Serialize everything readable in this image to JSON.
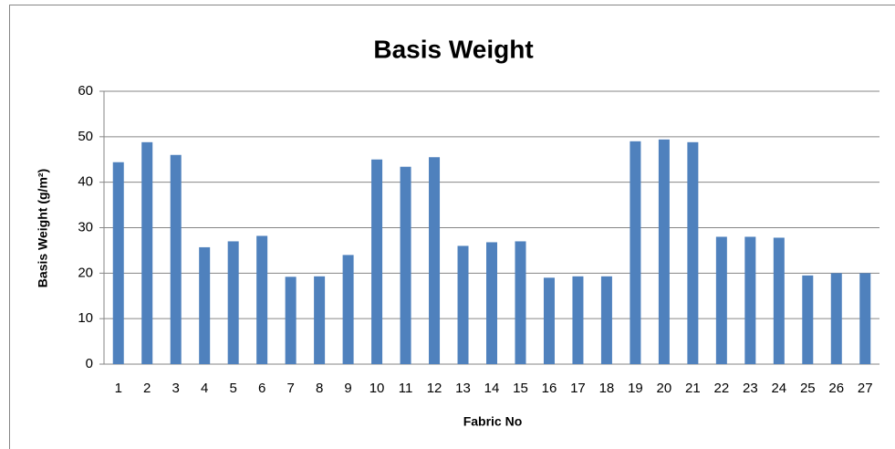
{
  "chart_data": {
    "type": "bar",
    "title": "Basis Weight",
    "x_label": "Fabric No",
    "y_label": "Basis Weight (g/m²)",
    "categories": [
      "1",
      "2",
      "3",
      "4",
      "5",
      "6",
      "7",
      "8",
      "9",
      "10",
      "11",
      "12",
      "13",
      "14",
      "15",
      "16",
      "17",
      "18",
      "19",
      "20",
      "21",
      "22",
      "23",
      "24",
      "25",
      "26",
      "27"
    ],
    "values": [
      44.4,
      48.8,
      46,
      25.7,
      27,
      28.2,
      19.2,
      19.3,
      24,
      45,
      43.4,
      45.5,
      26,
      26.8,
      27,
      19,
      19.3,
      19.3,
      49,
      49.4,
      48.8,
      28,
      28,
      27.8,
      19.5,
      20,
      20
    ],
    "color": "#4f81bd",
    "ylim": [
      0,
      60
    ],
    "yticks": [
      0,
      10,
      20,
      30,
      40,
      50,
      60
    ],
    "grid": true
  }
}
